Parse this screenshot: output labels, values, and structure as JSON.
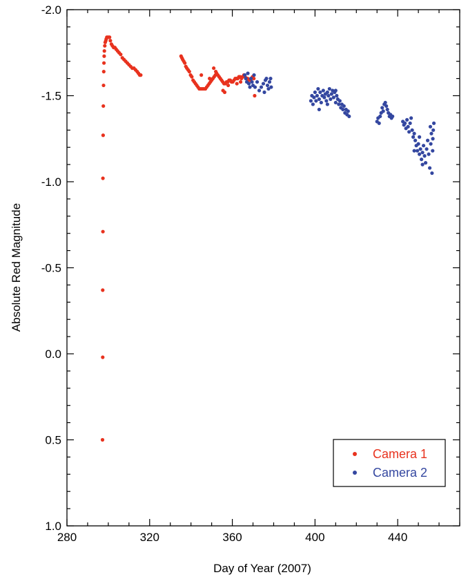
{
  "chart_data": {
    "type": "scatter",
    "title": "",
    "xlabel": "Day of Year (2007)",
    "ylabel": "Absolute Red Magnitude",
    "xlim": [
      280,
      470
    ],
    "ylim": [
      -2.0,
      1.0
    ],
    "y_inverted": true,
    "x_ticks": [
      280,
      320,
      360,
      400,
      440
    ],
    "x_tick_labels": [
      "280",
      "320",
      "360",
      "400",
      "440"
    ],
    "y_ticks": [
      -2.0,
      -1.5,
      -1.0,
      -0.5,
      0.0,
      0.5,
      1.0
    ],
    "y_tick_labels": [
      "-2.0",
      "-1.5",
      "-1.0",
      "-0.5",
      "0.0",
      "0.5",
      "1.0"
    ],
    "grid": false,
    "legend_position": "bottom-right",
    "series": [
      {
        "name": "Camera 1",
        "color": "#e8321e",
        "points": [
          [
            297.2,
            0.5
          ],
          [
            297.3,
            0.02
          ],
          [
            297.3,
            -0.37
          ],
          [
            297.4,
            -0.71
          ],
          [
            297.4,
            -1.02
          ],
          [
            297.5,
            -1.27
          ],
          [
            297.6,
            -1.44
          ],
          [
            297.7,
            -1.56
          ],
          [
            297.8,
            -1.64
          ],
          [
            297.9,
            -1.69
          ],
          [
            298.0,
            -1.73
          ],
          [
            298.1,
            -1.76
          ],
          [
            298.3,
            -1.79
          ],
          [
            298.5,
            -1.81
          ],
          [
            298.8,
            -1.82
          ],
          [
            299.0,
            -1.83
          ],
          [
            299.3,
            -1.84
          ],
          [
            299.7,
            -1.84
          ],
          [
            300.2,
            -1.84
          ],
          [
            300.6,
            -1.84
          ],
          [
            301.0,
            -1.82
          ],
          [
            301.5,
            -1.8
          ],
          [
            302.0,
            -1.79
          ],
          [
            302.6,
            -1.78
          ],
          [
            303.2,
            -1.78
          ],
          [
            303.8,
            -1.77
          ],
          [
            304.5,
            -1.76
          ],
          [
            305.2,
            -1.75
          ],
          [
            306.0,
            -1.74
          ],
          [
            306.8,
            -1.72
          ],
          [
            307.6,
            -1.71
          ],
          [
            308.4,
            -1.7
          ],
          [
            309.2,
            -1.69
          ],
          [
            310.0,
            -1.68
          ],
          [
            310.8,
            -1.67
          ],
          [
            311.6,
            -1.66
          ],
          [
            312.4,
            -1.66
          ],
          [
            313.2,
            -1.65
          ],
          [
            314.0,
            -1.64
          ],
          [
            314.6,
            -1.63
          ],
          [
            315.2,
            -1.62
          ],
          [
            315.7,
            -1.62
          ],
          [
            335.2,
            -1.73
          ],
          [
            335.6,
            -1.72
          ],
          [
            336.0,
            -1.71
          ],
          [
            336.5,
            -1.7
          ],
          [
            337.0,
            -1.69
          ],
          [
            337.5,
            -1.67
          ],
          [
            338.0,
            -1.66
          ],
          [
            338.6,
            -1.65
          ],
          [
            339.2,
            -1.64
          ],
          [
            339.8,
            -1.62
          ],
          [
            340.4,
            -1.61
          ],
          [
            341.0,
            -1.59
          ],
          [
            341.6,
            -1.58
          ],
          [
            342.2,
            -1.57
          ],
          [
            342.8,
            -1.56
          ],
          [
            343.4,
            -1.55
          ],
          [
            344.0,
            -1.54
          ],
          [
            344.6,
            -1.54
          ],
          [
            345.2,
            -1.54
          ],
          [
            345.8,
            -1.54
          ],
          [
            346.4,
            -1.54
          ],
          [
            347.0,
            -1.54
          ],
          [
            347.6,
            -1.55
          ],
          [
            348.2,
            -1.56
          ],
          [
            348.8,
            -1.57
          ],
          [
            349.4,
            -1.58
          ],
          [
            350.0,
            -1.59
          ],
          [
            350.6,
            -1.6
          ],
          [
            351.2,
            -1.61
          ],
          [
            351.8,
            -1.62
          ],
          [
            352.4,
            -1.63
          ],
          [
            353.0,
            -1.62
          ],
          [
            353.6,
            -1.61
          ],
          [
            354.2,
            -1.6
          ],
          [
            354.8,
            -1.59
          ],
          [
            355.4,
            -1.58
          ],
          [
            356.0,
            -1.57
          ],
          [
            356.6,
            -1.57
          ],
          [
            357.2,
            -1.58
          ],
          [
            357.8,
            -1.58
          ],
          [
            358.4,
            -1.59
          ],
          [
            359.0,
            -1.59
          ],
          [
            359.6,
            -1.58
          ],
          [
            360.2,
            -1.58
          ],
          [
            360.8,
            -1.59
          ],
          [
            361.4,
            -1.6
          ],
          [
            362.0,
            -1.6
          ],
          [
            362.6,
            -1.6
          ],
          [
            363.2,
            -1.61
          ],
          [
            363.8,
            -1.61
          ],
          [
            364.4,
            -1.6
          ],
          [
            365.0,
            -1.61
          ],
          [
            365.6,
            -1.62
          ],
          [
            366.2,
            -1.61
          ],
          [
            366.8,
            -1.6
          ],
          [
            367.4,
            -1.6
          ],
          [
            368.0,
            -1.59
          ],
          [
            368.6,
            -1.59
          ],
          [
            369.2,
            -1.6
          ],
          [
            369.8,
            -1.61
          ],
          [
            370.4,
            -1.6
          ],
          [
            345.0,
            -1.62
          ],
          [
            351.0,
            -1.66
          ],
          [
            355.5,
            -1.53
          ],
          [
            356.3,
            -1.52
          ],
          [
            370.8,
            -1.5
          ],
          [
            358.0,
            -1.56
          ],
          [
            362.2,
            -1.57
          ],
          [
            364.0,
            -1.58
          ],
          [
            352.0,
            -1.64
          ],
          [
            349.0,
            -1.6
          ]
        ]
      },
      {
        "name": "Camera 2",
        "color": "#3447a0",
        "points": [
          [
            366.0,
            -1.62
          ],
          [
            366.5,
            -1.6
          ],
          [
            367.0,
            -1.58
          ],
          [
            367.5,
            -1.63
          ],
          [
            368.0,
            -1.57
          ],
          [
            368.5,
            -1.55
          ],
          [
            369.0,
            -1.6
          ],
          [
            369.5,
            -1.58
          ],
          [
            370.0,
            -1.56
          ],
          [
            370.5,
            -1.62
          ],
          [
            371.0,
            -1.55
          ],
          [
            372.0,
            -1.58
          ],
          [
            373.0,
            -1.53
          ],
          [
            374.0,
            -1.55
          ],
          [
            375.0,
            -1.57
          ],
          [
            375.5,
            -1.52
          ],
          [
            376.0,
            -1.59
          ],
          [
            376.5,
            -1.6
          ],
          [
            377.0,
            -1.56
          ],
          [
            377.5,
            -1.54
          ],
          [
            378.0,
            -1.58
          ],
          [
            378.5,
            -1.6
          ],
          [
            378.8,
            -1.55
          ],
          [
            398.0,
            -1.47
          ],
          [
            398.5,
            -1.5
          ],
          [
            399.0,
            -1.45
          ],
          [
            399.5,
            -1.49
          ],
          [
            400.0,
            -1.52
          ],
          [
            400.5,
            -1.47
          ],
          [
            401.0,
            -1.5
          ],
          [
            401.5,
            -1.54
          ],
          [
            402.0,
            -1.48
          ],
          [
            402.5,
            -1.52
          ],
          [
            403.0,
            -1.46
          ],
          [
            403.5,
            -1.5
          ],
          [
            404.0,
            -1.53
          ],
          [
            404.5,
            -1.49
          ],
          [
            405.0,
            -1.51
          ],
          [
            405.5,
            -1.47
          ],
          [
            406.0,
            -1.52
          ],
          [
            406.5,
            -1.5
          ],
          [
            407.0,
            -1.54
          ],
          [
            407.5,
            -1.48
          ],
          [
            408.0,
            -1.51
          ],
          [
            408.5,
            -1.53
          ],
          [
            409.0,
            -1.49
          ],
          [
            409.5,
            -1.52
          ],
          [
            410.0,
            -1.46
          ],
          [
            410.5,
            -1.5
          ],
          [
            411.0,
            -1.48
          ],
          [
            411.5,
            -1.45
          ],
          [
            412.0,
            -1.47
          ],
          [
            412.5,
            -1.43
          ],
          [
            413.0,
            -1.45
          ],
          [
            413.5,
            -1.42
          ],
          [
            414.0,
            -1.44
          ],
          [
            414.5,
            -1.4
          ],
          [
            415.0,
            -1.42
          ],
          [
            415.5,
            -1.39
          ],
          [
            416.0,
            -1.41
          ],
          [
            416.5,
            -1.38
          ],
          [
            402.0,
            -1.42
          ],
          [
            406.0,
            -1.45
          ],
          [
            410.0,
            -1.53
          ],
          [
            430.0,
            -1.35
          ],
          [
            430.5,
            -1.37
          ],
          [
            431.0,
            -1.34
          ],
          [
            431.5,
            -1.38
          ],
          [
            432.0,
            -1.4
          ],
          [
            432.5,
            -1.43
          ],
          [
            433.0,
            -1.41
          ],
          [
            433.5,
            -1.45
          ],
          [
            434.0,
            -1.46
          ],
          [
            434.5,
            -1.44
          ],
          [
            435.0,
            -1.42
          ],
          [
            435.5,
            -1.4
          ],
          [
            436.0,
            -1.38
          ],
          [
            436.5,
            -1.39
          ],
          [
            437.0,
            -1.37
          ],
          [
            437.5,
            -1.38
          ],
          [
            442.5,
            -1.35
          ],
          [
            443.0,
            -1.33
          ],
          [
            443.5,
            -1.34
          ],
          [
            444.0,
            -1.31
          ],
          [
            444.5,
            -1.36
          ],
          [
            445.0,
            -1.32
          ],
          [
            445.5,
            -1.29
          ],
          [
            446.0,
            -1.34
          ],
          [
            446.5,
            -1.37
          ],
          [
            447.0,
            -1.3
          ],
          [
            447.5,
            -1.26
          ],
          [
            448.0,
            -1.28
          ],
          [
            448.5,
            -1.24
          ],
          [
            449.0,
            -1.21
          ],
          [
            449.5,
            -1.18
          ],
          [
            450.0,
            -1.22
          ],
          [
            450.5,
            -1.16
          ],
          [
            451.0,
            -1.19
          ],
          [
            451.5,
            -1.13
          ],
          [
            452.0,
            -1.17
          ],
          [
            452.5,
            -1.21
          ],
          [
            453.0,
            -1.15
          ],
          [
            453.5,
            -1.11
          ],
          [
            454.0,
            -1.19
          ],
          [
            454.5,
            -1.24
          ],
          [
            455.0,
            -1.16
          ],
          [
            455.5,
            -1.08
          ],
          [
            456.0,
            -1.22
          ],
          [
            456.3,
            -1.28
          ],
          [
            456.6,
            -1.05
          ],
          [
            456.9,
            -1.18
          ],
          [
            457.2,
            -1.3
          ],
          [
            457.5,
            -1.34
          ],
          [
            457.0,
            -1.25
          ],
          [
            455.8,
            -1.32
          ],
          [
            450.5,
            -1.26
          ],
          [
            448.0,
            -1.18
          ],
          [
            452.0,
            -1.1
          ]
        ]
      }
    ]
  }
}
